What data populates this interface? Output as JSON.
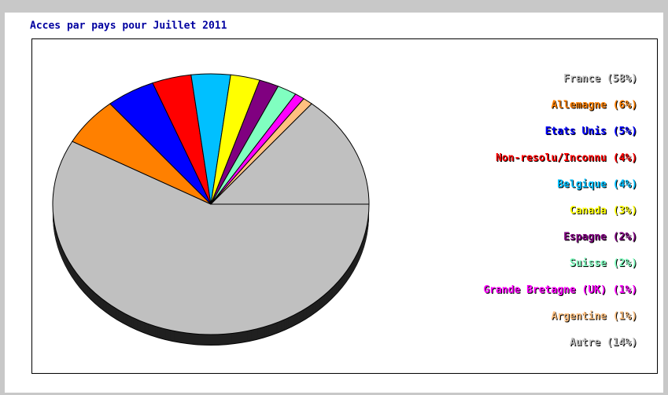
{
  "chart_data": {
    "type": "pie",
    "title": "Acces par pays pour Juillet 2011",
    "categories": [
      "France",
      "Allemagne",
      "Etats Unis",
      "Non-resolu/Inconnu",
      "Belgique",
      "Canada",
      "Espagne",
      "Suisse",
      "Grande Bretagne (UK)",
      "Argentine",
      "Autre"
    ],
    "values": [
      58,
      6,
      5,
      4,
      4,
      3,
      2,
      2,
      1,
      1,
      14
    ],
    "value_labels": [
      "(58%)",
      "(6%)",
      "(5%)",
      "(4%)",
      "(4%)",
      "(3%)",
      "(2%)",
      "(2%)",
      "(1%)",
      "(1%)",
      "(14%)"
    ],
    "colors": [
      "#c0c0c0",
      "#ff8000",
      "#0000ff",
      "#ff0000",
      "#00c0ff",
      "#ffff00",
      "#800080",
      "#80ffc0",
      "#ff00ff",
      "#ffc080",
      "#c0c0c0"
    ]
  }
}
